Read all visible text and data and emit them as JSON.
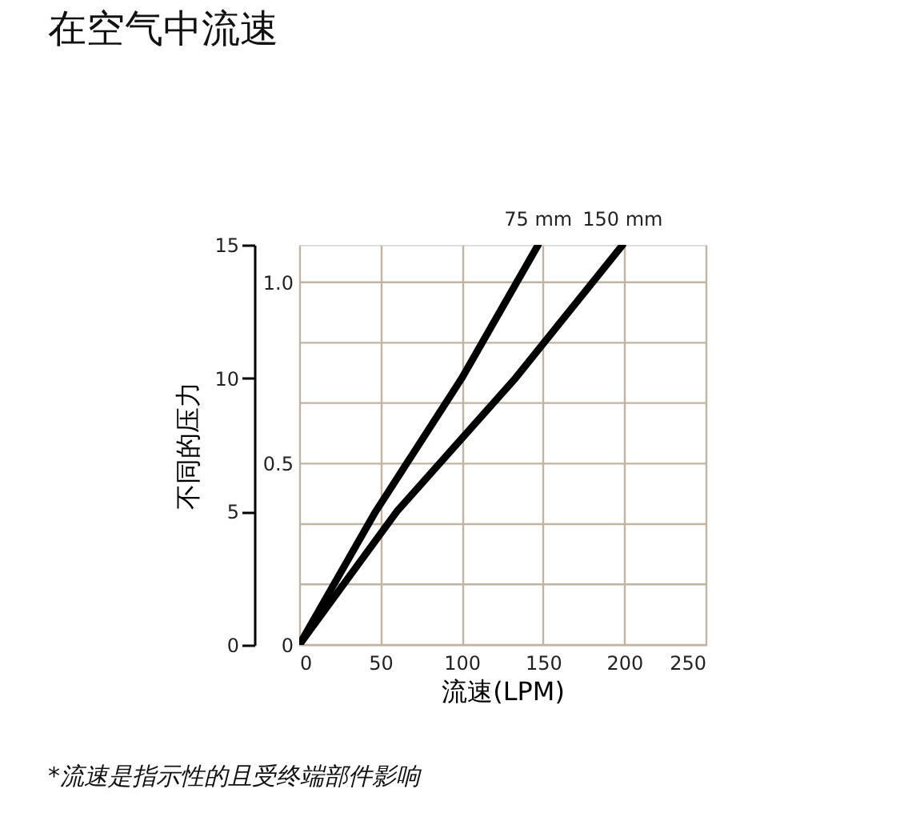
{
  "chart_data": {
    "type": "line",
    "title": "在空气中流速",
    "xlabel": "流速(LPM)",
    "ylabel": "不同的压力",
    "series": [
      {
        "name": "75 mm",
        "color": "#000000",
        "x": [
          0,
          47,
          100,
          147
        ],
        "values": [
          0,
          5,
          10,
          15
        ]
      },
      {
        "name": "150 mm",
        "color": "#000000",
        "x": [
          0,
          60,
          133,
          199
        ],
        "values": [
          0,
          5,
          10,
          15
        ]
      }
    ],
    "xlim": [
      0,
      250
    ],
    "xticks": [
      0,
      50,
      100,
      150,
      200,
      250
    ],
    "ylim": [
      0,
      15
    ],
    "yticks": [
      0,
      5,
      10,
      15
    ],
    "y2lim": [
      0,
      1.103
    ],
    "y2ticks": [
      0,
      {
        "value": 0.167,
        "label": null
      },
      {
        "value": 0.333,
        "label": null
      },
      0.5,
      {
        "value": 0.667,
        "label": null
      },
      {
        "value": 0.833,
        "label": null
      },
      {
        "value": 1,
        "label": "1.0"
      }
    ],
    "grid": true,
    "legend": false,
    "line_style": "solid",
    "marker": "none",
    "annotations": [
      "*流速是指示性的且受终端部件影响"
    ]
  }
}
